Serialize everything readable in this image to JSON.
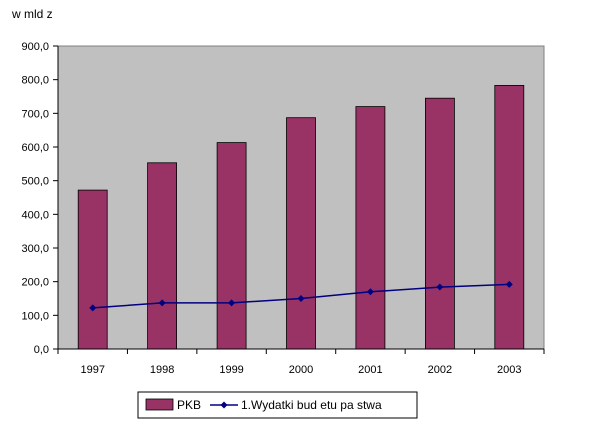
{
  "chart_data": {
    "type": "bar",
    "ylabel": "w mld z",
    "categories": [
      "1997",
      "1998",
      "1999",
      "2000",
      "2001",
      "2002",
      "2003"
    ],
    "y_ticks": [
      "0,0",
      "100,0",
      "200,0",
      "300,0",
      "400,0",
      "500,0",
      "600,0",
      "700,0",
      "800,0",
      "900,0"
    ],
    "ylim": [
      0,
      900
    ],
    "grid": false,
    "legend_position": "bottom",
    "series": [
      {
        "name": "PKB",
        "type": "bar",
        "color": "#993366",
        "values": [
          472,
          553,
          613,
          687,
          720,
          745,
          783
        ]
      },
      {
        "name": "1.Wydatki bud  etu pa  stwa",
        "type": "line",
        "color": "#000080",
        "values": [
          122,
          137,
          137,
          150,
          170,
          184,
          192
        ]
      }
    ]
  }
}
